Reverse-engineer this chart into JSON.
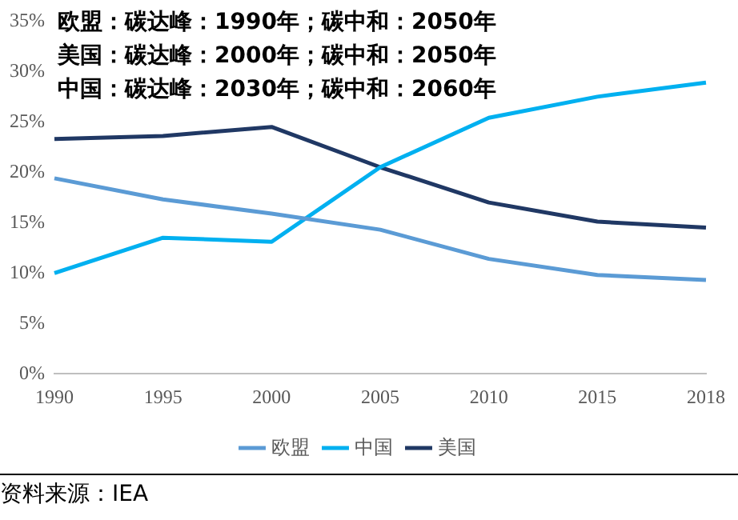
{
  "chart_data": {
    "type": "line",
    "categories": [
      "1990",
      "1995",
      "2000",
      "2005",
      "2010",
      "2015",
      "2018"
    ],
    "series": [
      {
        "name": "欧盟",
        "color": "#5b9bd5",
        "values": [
          19.4,
          17.3,
          15.9,
          14.3,
          11.4,
          9.8,
          9.3
        ]
      },
      {
        "name": "中国",
        "color": "#00b0f0",
        "values": [
          10.0,
          13.5,
          13.1,
          20.5,
          25.4,
          27.5,
          28.9
        ]
      },
      {
        "name": "美国",
        "color": "#203864",
        "values": [
          23.3,
          23.6,
          24.5,
          20.5,
          17.0,
          15.1,
          14.5
        ]
      }
    ],
    "ylim": [
      0,
      35
    ],
    "yticks": [
      {
        "value": 0,
        "label": "0%"
      },
      {
        "value": 5,
        "label": "5%"
      },
      {
        "value": 10,
        "label": "10%"
      },
      {
        "value": 15,
        "label": "15%"
      },
      {
        "value": 20,
        "label": "20%"
      },
      {
        "value": 25,
        "label": "25%"
      },
      {
        "value": 30,
        "label": "30%"
      },
      {
        "value": 35,
        "label": "35%"
      }
    ],
    "grid": false,
    "legend": "bottom",
    "marker": "none",
    "line_style": "solid",
    "annotations": [
      "欧盟：碳达峰：1990年；碳中和：2050年",
      "美国：碳达峰：2000年；碳中和：2050年",
      "中国：碳达峰：2030年；碳中和：2060年",
      "资料来源：IEA"
    ]
  }
}
